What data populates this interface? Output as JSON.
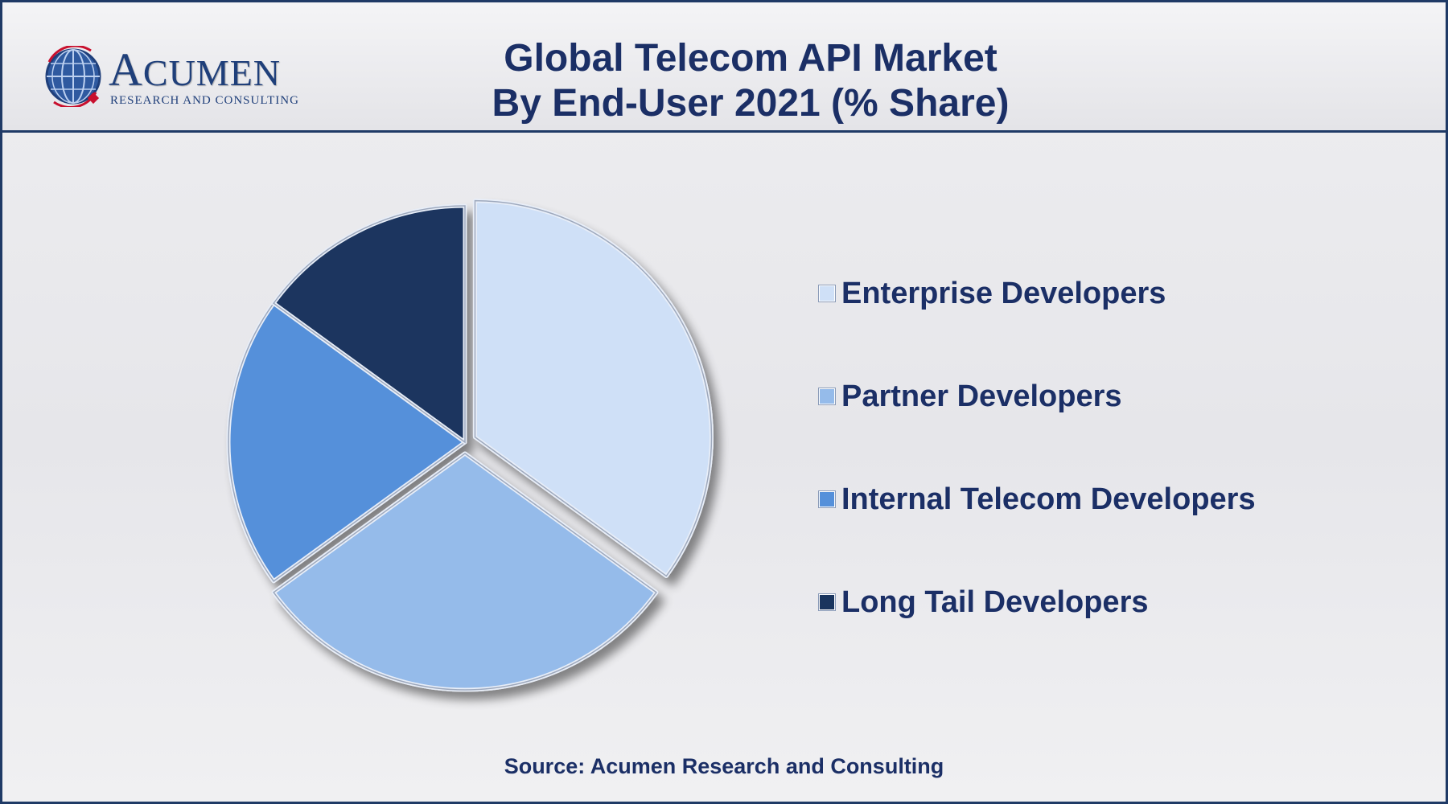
{
  "logo": {
    "name_first": "A",
    "name_rest": "CUMEN",
    "tagline": "RESEARCH AND CONSULTING"
  },
  "title": {
    "line1": "Global Telecom API Market",
    "line2": "By End-User 2021 (% Share)"
  },
  "source": "Source: Acumen Research and Consulting",
  "colors": {
    "title": "#1b2f66",
    "border": "#1f3a66"
  },
  "chart_data": {
    "type": "pie",
    "title": "Global Telecom API Market By End-User 2021 (% Share)",
    "legend_position": "right",
    "categories": [
      "Enterprise Developers",
      "Partner Developers",
      "Internal Telecom Developers",
      "Long Tail Developers"
    ],
    "values": [
      35,
      30,
      20,
      15
    ],
    "colors": [
      "#cfe0f7",
      "#95bbea",
      "#5590da",
      "#1a355e"
    ],
    "exploded": [
      true,
      true,
      false,
      false
    ]
  }
}
